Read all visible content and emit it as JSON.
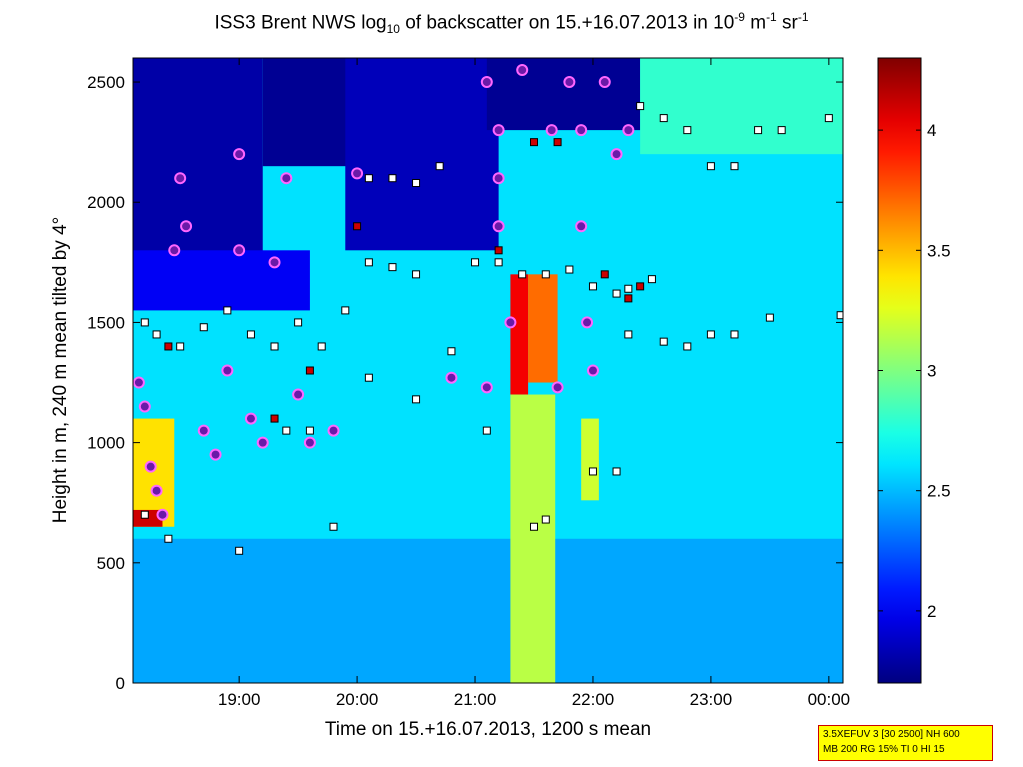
{
  "chart_data": {
    "type": "heatmap",
    "title_parts": {
      "a": "ISS3 Brent NWS log",
      "b": "10",
      "c": " of backscatter on 15.+16.07.2013 in 10",
      "d": "-9",
      "e": " m",
      "f": "-1",
      "g": " sr",
      "h": "-1"
    },
    "xlabel": "Time on 15.+16.07.2013, 1200 s mean",
    "ylabel": "Height in m, 240 m mean tilted by 4°",
    "x_range_hours": [
      18.1,
      24.12
    ],
    "ylim": [
      0,
      2600
    ],
    "x_ticks": [
      {
        "value": 19.0,
        "label": "19:00"
      },
      {
        "value": 20.0,
        "label": "20:00"
      },
      {
        "value": 21.0,
        "label": "21:00"
      },
      {
        "value": 22.0,
        "label": "22:00"
      },
      {
        "value": 23.0,
        "label": "23:00"
      },
      {
        "value": 24.0,
        "label": "00:00"
      }
    ],
    "y_ticks": [
      {
        "value": 0,
        "label": "0"
      },
      {
        "value": 500,
        "label": "500"
      },
      {
        "value": 1000,
        "label": "1000"
      },
      {
        "value": 1500,
        "label": "1500"
      },
      {
        "value": 2000,
        "label": "2000"
      },
      {
        "value": 2500,
        "label": "2500"
      }
    ],
    "colorbar": {
      "range": [
        1.7,
        4.3
      ],
      "ticks": [
        {
          "value": 2.0,
          "label": "2"
        },
        {
          "value": 2.5,
          "label": "2.5"
        },
        {
          "value": 3.0,
          "label": "3"
        },
        {
          "value": 3.5,
          "label": "3.5"
        },
        {
          "value": 4.0,
          "label": "4"
        }
      ]
    },
    "regions": [
      {
        "name": "background",
        "x": [
          18.1,
          24.12
        ],
        "y": [
          0,
          2600
        ],
        "value": 2.6
      },
      {
        "name": "low-layer",
        "x": [
          18.1,
          24.12
        ],
        "y": [
          0,
          600
        ],
        "value": 2.45
      },
      {
        "name": "upper-clear-1",
        "x": [
          18.1,
          19.2
        ],
        "y": [
          1750,
          2600
        ],
        "value": 1.8
      },
      {
        "name": "upper-clear-2",
        "x": [
          19.2,
          20.6
        ],
        "y": [
          2150,
          2600
        ],
        "value": 1.75
      },
      {
        "name": "upper-clear-3",
        "x": [
          19.9,
          21.2
        ],
        "y": [
          1800,
          2600
        ],
        "value": 1.85
      },
      {
        "name": "upper-clear-4",
        "x": [
          18.1,
          19.6
        ],
        "y": [
          1550,
          1800
        ],
        "value": 2.0
      },
      {
        "name": "upper-clear-5",
        "x": [
          21.1,
          22.4
        ],
        "y": [
          2300,
          2600
        ],
        "value": 1.75
      },
      {
        "name": "mid-cloud-2140",
        "x": [
          21.3,
          21.45
        ],
        "y": [
          1200,
          1700
        ],
        "value": 4.0
      },
      {
        "name": "mid-cloud-core",
        "x": [
          21.45,
          21.7
        ],
        "y": [
          1250,
          1700
        ],
        "value": 3.7
      },
      {
        "name": "rain-shaft",
        "x": [
          21.3,
          21.68
        ],
        "y": [
          0,
          1200
        ],
        "value": 3.15
      },
      {
        "name": "cloud-1830-low",
        "x": [
          18.1,
          18.45
        ],
        "y": [
          650,
          1100
        ],
        "value": 3.4
      },
      {
        "name": "cloud-1830-base",
        "x": [
          18.1,
          18.35
        ],
        "y": [
          650,
          720
        ],
        "value": 4.1
      },
      {
        "name": "cloud-2200",
        "x": [
          21.9,
          22.05
        ],
        "y": [
          760,
          1100
        ],
        "value": 3.2
      },
      {
        "name": "upper-2300",
        "x": [
          22.4,
          24.12
        ],
        "y": [
          2200,
          2600
        ],
        "value": 2.8
      }
    ],
    "marker_groups": [
      {
        "name": "white-squares",
        "marker": "square",
        "fill": "#ffffff",
        "points": [
          [
            18.2,
            1500
          ],
          [
            18.3,
            1450
          ],
          [
            18.5,
            1400
          ],
          [
            18.7,
            1480
          ],
          [
            18.9,
            1550
          ],
          [
            19.1,
            1450
          ],
          [
            19.3,
            1400
          ],
          [
            19.5,
            1500
          ],
          [
            19.7,
            1400
          ],
          [
            19.9,
            1550
          ],
          [
            20.1,
            2100
          ],
          [
            20.3,
            2100
          ],
          [
            20.5,
            2080
          ],
          [
            20.7,
            2150
          ],
          [
            20.1,
            1750
          ],
          [
            20.3,
            1730
          ],
          [
            20.5,
            1700
          ],
          [
            21.0,
            1750
          ],
          [
            21.2,
            1750
          ],
          [
            21.4,
            1700
          ],
          [
            21.6,
            1700
          ],
          [
            21.8,
            1720
          ],
          [
            22.0,
            1650
          ],
          [
            22.2,
            1620
          ],
          [
            22.4,
            2400
          ],
          [
            22.6,
            2350
          ],
          [
            22.8,
            2300
          ],
          [
            23.0,
            2150
          ],
          [
            23.2,
            2150
          ],
          [
            23.4,
            2300
          ],
          [
            23.6,
            2300
          ],
          [
            24.0,
            2350
          ],
          [
            22.3,
            1450
          ],
          [
            22.6,
            1420
          ],
          [
            22.8,
            1400
          ],
          [
            23.0,
            1450
          ],
          [
            23.2,
            1450
          ],
          [
            23.5,
            1520
          ],
          [
            24.1,
            1530
          ],
          [
            21.5,
            650
          ],
          [
            21.6,
            680
          ],
          [
            22.0,
            880
          ],
          [
            22.2,
            880
          ],
          [
            18.2,
            700
          ],
          [
            18.4,
            600
          ],
          [
            19.0,
            550
          ],
          [
            19.8,
            650
          ],
          [
            20.1,
            1270
          ],
          [
            20.5,
            1180
          ],
          [
            20.8,
            1380
          ],
          [
            21.1,
            1050
          ],
          [
            22.3,
            1640
          ],
          [
            22.5,
            1680
          ],
          [
            19.4,
            1050
          ],
          [
            19.6,
            1050
          ]
        ]
      },
      {
        "name": "red-squares",
        "marker": "square",
        "fill": "#cc0000",
        "points": [
          [
            21.5,
            2250
          ],
          [
            21.7,
            2250
          ],
          [
            21.9,
            2300
          ],
          [
            22.1,
            1700
          ],
          [
            22.3,
            1600
          ],
          [
            22.4,
            1650
          ],
          [
            18.4,
            1400
          ],
          [
            19.3,
            1100
          ],
          [
            20.0,
            1900
          ],
          [
            21.2,
            1800
          ],
          [
            19.6,
            1300
          ]
        ]
      },
      {
        "name": "purple-circles",
        "marker": "circle",
        "fill": "#6a1aa8",
        "points": [
          [
            18.15,
            1250
          ],
          [
            18.2,
            1150
          ],
          [
            18.25,
            900
          ],
          [
            18.3,
            800
          ],
          [
            18.35,
            700
          ],
          [
            18.45,
            1800
          ],
          [
            18.5,
            2100
          ],
          [
            18.55,
            1900
          ],
          [
            18.7,
            1050
          ],
          [
            18.8,
            950
          ],
          [
            18.9,
            1300
          ],
          [
            19.0,
            2200
          ],
          [
            19.0,
            1800
          ],
          [
            19.1,
            1100
          ],
          [
            19.2,
            1000
          ],
          [
            19.3,
            1750
          ],
          [
            19.4,
            2100
          ],
          [
            19.5,
            1200
          ],
          [
            19.6,
            1000
          ],
          [
            19.8,
            1050
          ],
          [
            20.0,
            2120
          ],
          [
            21.1,
            2500
          ],
          [
            21.2,
            2300
          ],
          [
            21.2,
            1900
          ],
          [
            21.3,
            1500
          ],
          [
            21.4,
            2550
          ],
          [
            21.65,
            2300
          ],
          [
            21.8,
            2500
          ],
          [
            21.9,
            2300
          ],
          [
            21.9,
            1900
          ],
          [
            21.95,
            1500
          ],
          [
            22.0,
            1300
          ],
          [
            22.1,
            2500
          ],
          [
            22.2,
            2200
          ],
          [
            22.3,
            2300
          ],
          [
            21.7,
            1230
          ],
          [
            20.8,
            1270
          ],
          [
            21.1,
            1230
          ],
          [
            21.2,
            2100
          ]
        ]
      }
    ]
  },
  "info_box": {
    "line1": "3.5XEFUV 3 [30 2500] NH 600",
    "line2": "MB 200 RG 15% TI 0 HI 15"
  },
  "colors": {
    "marker_outline": "#000000",
    "circle_outline": "#ff66ff",
    "info_box_bg": "#ffff00",
    "info_box_border": "#cc0000"
  }
}
